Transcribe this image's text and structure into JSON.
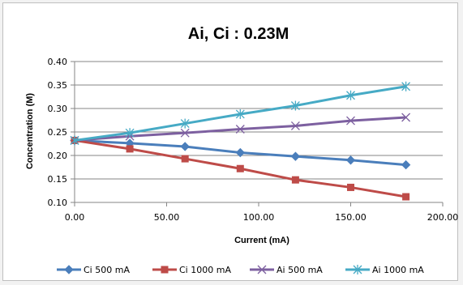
{
  "chart_data": {
    "type": "line",
    "title": "Ai, Ci : 0.23M",
    "xlabel": "Current (mA)",
    "ylabel": "Concentration (M)",
    "xlim": [
      0,
      200
    ],
    "ylim": [
      0.1,
      0.4
    ],
    "xticks": [
      "0.00",
      "50.00",
      "100.00",
      "150.00",
      "200.00"
    ],
    "yticks": [
      "0.10",
      "0.15",
      "0.20",
      "0.25",
      "0.30",
      "0.35",
      "0.40"
    ],
    "grid": "horizontal",
    "legend_position": "bottom",
    "x": [
      0,
      30,
      60,
      90,
      120,
      150,
      180
    ],
    "series": [
      {
        "name": "Ci 500 mA",
        "color": "#4a7ebb",
        "marker": "diamond",
        "values": [
          0.232,
          0.226,
          0.219,
          0.206,
          0.198,
          0.19,
          0.18
        ]
      },
      {
        "name": "Ci 1000 mA",
        "color": "#be4b48",
        "marker": "square",
        "values": [
          0.232,
          0.214,
          0.193,
          0.172,
          0.148,
          0.132,
          0.112
        ]
      },
      {
        "name": "Ai 500 mA",
        "color": "#7d60a0",
        "marker": "x",
        "values": [
          0.232,
          0.241,
          0.248,
          0.256,
          0.263,
          0.274,
          0.281
        ]
      },
      {
        "name": "Ai 1000 mA",
        "color": "#46aac5",
        "marker": "star",
        "values": [
          0.232,
          0.248,
          0.268,
          0.288,
          0.306,
          0.328,
          0.347
        ]
      }
    ]
  }
}
